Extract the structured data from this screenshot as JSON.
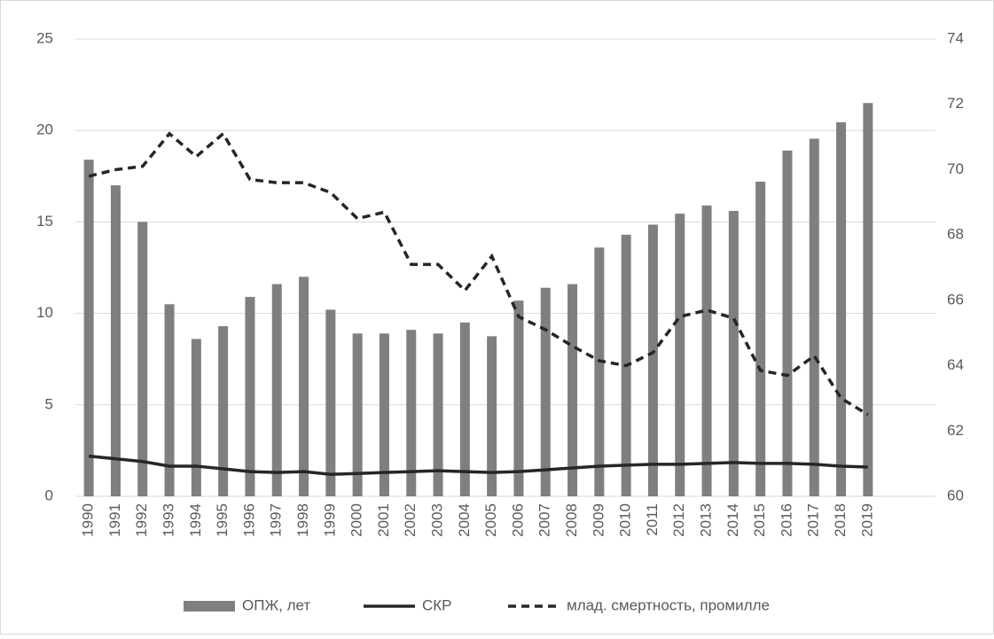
{
  "chart_data": {
    "type": "bar-line",
    "categories": [
      "1990",
      "1991",
      "1992",
      "1993",
      "1994",
      "1995",
      "1996",
      "1997",
      "1998",
      "1999",
      "2000",
      "2001",
      "2002",
      "2003",
      "2004",
      "2005",
      "2006",
      "2007",
      "2008",
      "2009",
      "2010",
      "2011",
      "2012",
      "2013",
      "2014",
      "2015",
      "2016",
      "2017",
      "2018",
      "2019"
    ],
    "series": [
      {
        "name": "ОПЖ, лет",
        "type": "bar",
        "color": "#7f7f7f",
        "axis": "y",
        "values": [
          18.4,
          17.0,
          15.0,
          10.5,
          8.6,
          9.3,
          10.9,
          11.6,
          12.0,
          10.2,
          8.9,
          8.9,
          9.1,
          8.9,
          9.5,
          8.75,
          10.7,
          11.4,
          11.6,
          13.6,
          14.3,
          14.85,
          15.45,
          15.9,
          15.6,
          17.2,
          18.9,
          19.55,
          20.45,
          21.5
        ]
      },
      {
        "name": "СКР",
        "type": "line",
        "color": "#262626",
        "axis": "y",
        "values": [
          2.2,
          2.05,
          1.9,
          1.65,
          1.65,
          1.5,
          1.35,
          1.3,
          1.35,
          1.2,
          1.25,
          1.3,
          1.35,
          1.4,
          1.35,
          1.3,
          1.35,
          1.45,
          1.55,
          1.65,
          1.7,
          1.75,
          1.75,
          1.8,
          1.85,
          1.8,
          1.8,
          1.75,
          1.65,
          1.6
        ]
      },
      {
        "name": "млад. смертность, промилле",
        "type": "dashed",
        "color": "#262626",
        "axis": "y2",
        "values": [
          69.8,
          70.0,
          70.1,
          71.1,
          70.4,
          71.1,
          69.7,
          69.6,
          69.6,
          69.3,
          68.5,
          68.7,
          67.1,
          67.1,
          66.3,
          67.35,
          65.5,
          65.1,
          64.6,
          64.15,
          64.0,
          64.4,
          65.5,
          65.7,
          65.45,
          63.85,
          63.7,
          64.3,
          63.0,
          62.5
        ]
      }
    ],
    "ylim": [
      0,
      25
    ],
    "yticks": [
      0,
      5,
      10,
      15,
      20,
      25
    ],
    "y2lim": [
      60,
      74
    ],
    "y2ticks": [
      60,
      62,
      64,
      66,
      68,
      70,
      72,
      74
    ],
    "grid": true,
    "legend": "bottom"
  }
}
